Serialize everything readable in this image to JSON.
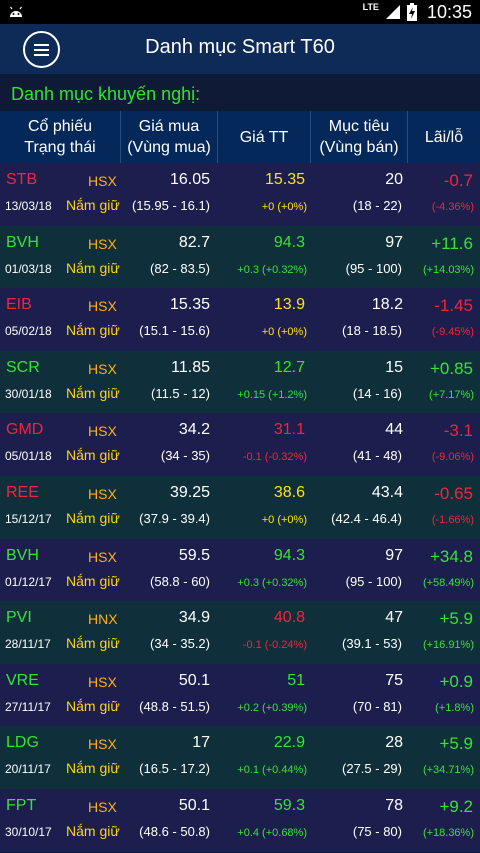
{
  "status_bar": {
    "network": "LTE",
    "time": "10:35"
  },
  "app_bar": {
    "title": "Danh mục Smart T60",
    "menu_icon": "hamburger-menu-icon"
  },
  "section_title": "Danh mục khuyến nghị:",
  "columns": [
    {
      "line1": "Cổ phiếu",
      "line2": "Trạng thái"
    },
    {
      "line1": "Giá mua",
      "line2": "(Vùng mua)"
    },
    {
      "line1": "Giá TT",
      "line2": ""
    },
    {
      "line1": "Mục tiêu",
      "line2": "(Vùng bán)"
    },
    {
      "line1": "Lãi/lỗ",
      "line2": ""
    }
  ],
  "colors": {
    "up": "#36e236",
    "down": "#f0263c",
    "flat": "#ffe01a",
    "exchange": "#ffae1a",
    "status": "#ffd21a"
  },
  "rows": [
    {
      "symbol": "STB",
      "symbol_trend": "down",
      "exchange": "HSX",
      "date": "13/03/18",
      "status": "Nắm giữ",
      "buy_price": "16.05",
      "buy_range": "(15.95 - 16.1)",
      "market_price": "15.35",
      "price_trend": "flat",
      "change": "+0 (+0%)",
      "target": "20",
      "target_range": "(18 - 22)",
      "pl": "-0.7",
      "pl_pct": "(-4.36%)",
      "pl_trend": "down"
    },
    {
      "symbol": "BVH",
      "symbol_trend": "up",
      "exchange": "HSX",
      "date": "01/03/18",
      "status": "Nắm giữ",
      "buy_price": "82.7",
      "buy_range": "(82 - 83.5)",
      "market_price": "94.3",
      "price_trend": "up",
      "change": "+0.3 (+0.32%)",
      "target": "97",
      "target_range": "(95 - 100)",
      "pl": "+11.6",
      "pl_pct": "(+14.03%)",
      "pl_trend": "up"
    },
    {
      "symbol": "EIB",
      "symbol_trend": "down",
      "exchange": "HSX",
      "date": "05/02/18",
      "status": "Nắm giữ",
      "buy_price": "15.35",
      "buy_range": "(15.1 - 15.6)",
      "market_price": "13.9",
      "price_trend": "flat",
      "change": "+0 (+0%)",
      "target": "18.2",
      "target_range": "(18 - 18.5)",
      "pl": "-1.45",
      "pl_pct": "(-9.45%)",
      "pl_trend": "down"
    },
    {
      "symbol": "SCR",
      "symbol_trend": "up",
      "exchange": "HSX",
      "date": "30/01/18",
      "status": "Nắm giữ",
      "buy_price": "11.85",
      "buy_range": "(11.5 - 12)",
      "market_price": "12.7",
      "price_trend": "up",
      "change": "+0.15 (+1.2%)",
      "target": "15",
      "target_range": "(14 - 16)",
      "pl": "+0.85",
      "pl_pct": "(+7.17%)",
      "pl_trend": "up"
    },
    {
      "symbol": "GMD",
      "symbol_trend": "down",
      "exchange": "HSX",
      "date": "05/01/18",
      "status": "Nắm giữ",
      "buy_price": "34.2",
      "buy_range": "(34 - 35)",
      "market_price": "31.1",
      "price_trend": "down",
      "change": "-0.1 (-0.32%)",
      "target": "44",
      "target_range": "(41 - 48)",
      "pl": "-3.1",
      "pl_pct": "(-9.06%)",
      "pl_trend": "down"
    },
    {
      "symbol": "REE",
      "symbol_trend": "down",
      "exchange": "HSX",
      "date": "15/12/17",
      "status": "Nắm giữ",
      "buy_price": "39.25",
      "buy_range": "(37.9 - 39.4)",
      "market_price": "38.6",
      "price_trend": "flat",
      "change": "+0 (+0%)",
      "target": "43.4",
      "target_range": "(42.4 - 46.4)",
      "pl": "-0.65",
      "pl_pct": "(-1.66%)",
      "pl_trend": "down"
    },
    {
      "symbol": "BVH",
      "symbol_trend": "up",
      "exchange": "HSX",
      "date": "01/12/17",
      "status": "Nắm giữ",
      "buy_price": "59.5",
      "buy_range": "(58.8 - 60)",
      "market_price": "94.3",
      "price_trend": "up",
      "change": "+0.3 (+0.32%)",
      "target": "97",
      "target_range": "(95 - 100)",
      "pl": "+34.8",
      "pl_pct": "(+58.49%)",
      "pl_trend": "up"
    },
    {
      "symbol": "PVI",
      "symbol_trend": "up",
      "exchange": "HNX",
      "date": "28/11/17",
      "status": "Nắm giữ",
      "buy_price": "34.9",
      "buy_range": "(34 - 35.2)",
      "market_price": "40.8",
      "price_trend": "down",
      "change": "-0.1 (-0.24%)",
      "target": "47",
      "target_range": "(39.1 - 53)",
      "pl": "+5.9",
      "pl_pct": "(+16.91%)",
      "pl_trend": "up"
    },
    {
      "symbol": "VRE",
      "symbol_trend": "up",
      "exchange": "HSX",
      "date": "27/11/17",
      "status": "Nắm giữ",
      "buy_price": "50.1",
      "buy_range": "(48.8 - 51.5)",
      "market_price": "51",
      "price_trend": "up",
      "change": "+0.2 (+0.39%)",
      "target": "75",
      "target_range": "(70 - 81)",
      "pl": "+0.9",
      "pl_pct": "(+1.8%)",
      "pl_trend": "up"
    },
    {
      "symbol": "LDG",
      "symbol_trend": "up",
      "exchange": "HSX",
      "date": "20/11/17",
      "status": "Nắm giữ",
      "buy_price": "17",
      "buy_range": "(16.5 - 17.2)",
      "market_price": "22.9",
      "price_trend": "up",
      "change": "+0.1 (+0.44%)",
      "target": "28",
      "target_range": "(27.5 - 29)",
      "pl": "+5.9",
      "pl_pct": "(+34.71%)",
      "pl_trend": "up"
    },
    {
      "symbol": "FPT",
      "symbol_trend": "up",
      "exchange": "HSX",
      "date": "30/10/17",
      "status": "Nắm giữ",
      "buy_price": "50.1",
      "buy_range": "(48.6 - 50.8)",
      "market_price": "59.3",
      "price_trend": "up",
      "change": "+0.4 (+0.68%)",
      "target": "78",
      "target_range": "(75 - 80)",
      "pl": "+9.2",
      "pl_pct": "(+18.36%)",
      "pl_trend": "up"
    }
  ]
}
